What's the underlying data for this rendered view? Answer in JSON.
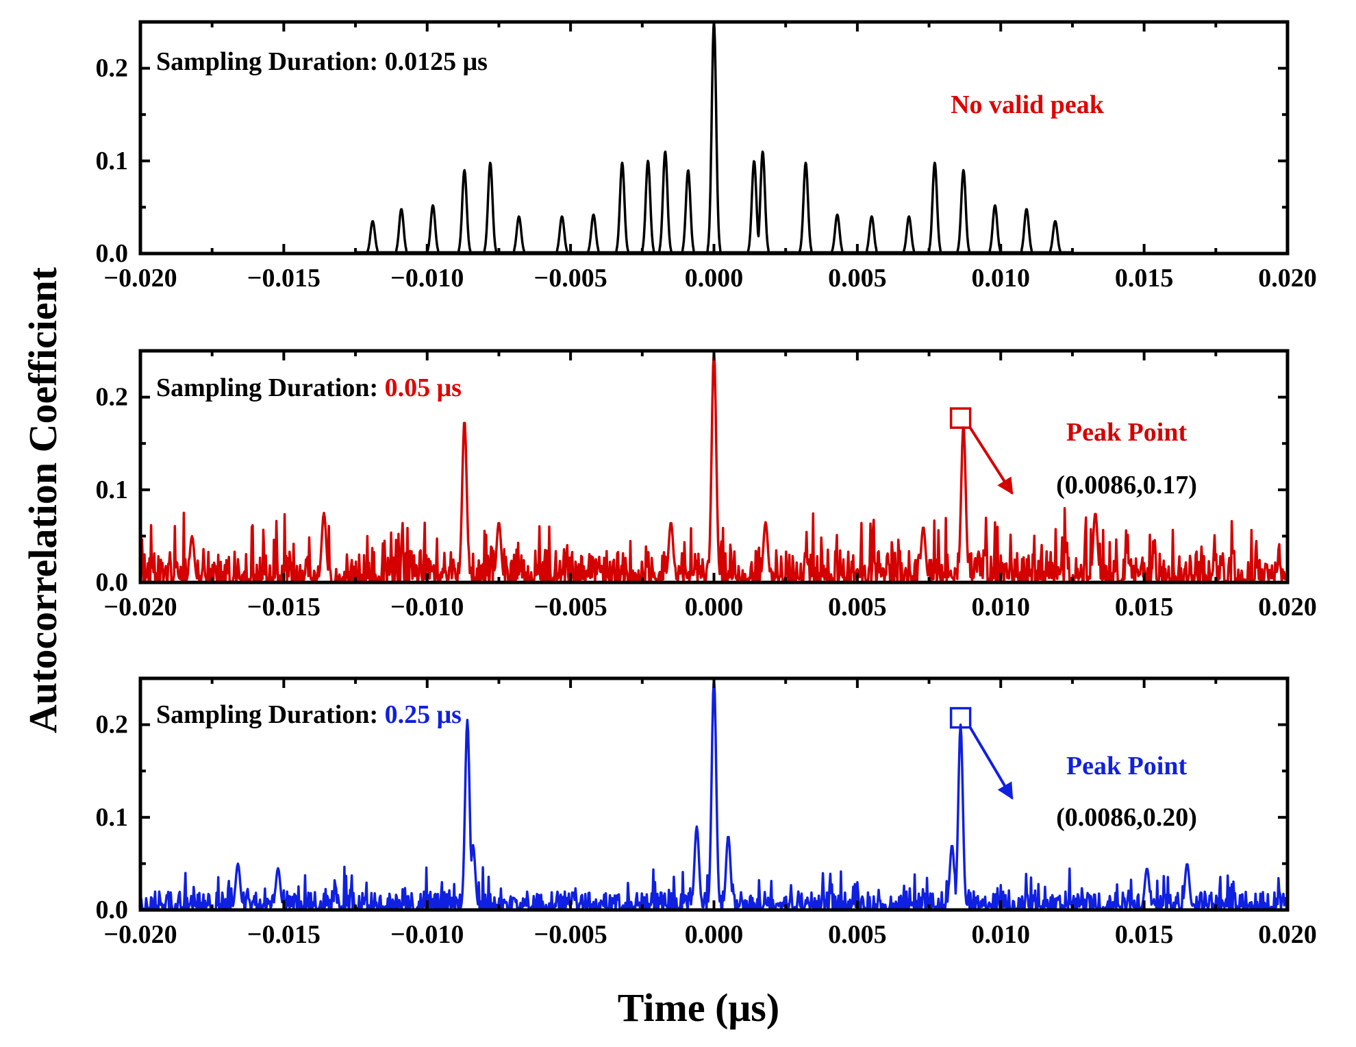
{
  "figure": {
    "ylabel": "Autocorrelation Coefficient",
    "xlabel": "Time (μs)"
  },
  "chart_data": [
    {
      "type": "line",
      "id": "panel1",
      "xlim": [
        -0.02,
        0.02
      ],
      "ylim": [
        0,
        0.25
      ],
      "x_ticks": [
        -0.02,
        -0.015,
        -0.01,
        -0.005,
        0.0,
        0.005,
        0.01,
        0.015,
        0.02
      ],
      "x_tick_labels": [
        "−0.020",
        "−0.015",
        "−0.010",
        "−0.005",
        "0.000",
        "0.005",
        "0.010",
        "0.015",
        "0.020"
      ],
      "y_ticks": [
        0.0,
        0.1,
        0.2
      ],
      "y_tick_labels": [
        "0.0",
        "0.1",
        "0.2"
      ],
      "grid": false,
      "sampling_label": "Sampling Duration: ",
      "sampling_value": "0.0125 μs",
      "sampling_value_color": "#000000",
      "note": "No valid peak",
      "note_color": "#e00000",
      "series": [
        {
          "color": "#000000",
          "x_range": [
            -0.0125,
            0.0125
          ],
          "noise_level": 0,
          "peaks": [
            [
              -0.0119,
              0.035
            ],
            [
              -0.0109,
              0.048
            ],
            [
              -0.0098,
              0.052
            ],
            [
              -0.0087,
              0.09
            ],
            [
              -0.0078,
              0.098
            ],
            [
              -0.0068,
              0.04
            ],
            [
              -0.0053,
              0.04
            ],
            [
              -0.0042,
              0.042
            ],
            [
              -0.0032,
              0.098
            ],
            [
              -0.0023,
              0.1
            ],
            [
              -0.0017,
              0.11
            ],
            [
              -0.0009,
              0.09
            ],
            [
              0.0,
              0.25
            ],
            [
              0.0014,
              0.1
            ],
            [
              0.0017,
              0.11
            ],
            [
              0.0032,
              0.098
            ],
            [
              0.0043,
              0.042
            ],
            [
              0.0055,
              0.04
            ],
            [
              0.0068,
              0.04
            ],
            [
              0.0077,
              0.098
            ],
            [
              0.0087,
              0.09
            ],
            [
              0.0098,
              0.052
            ],
            [
              0.0109,
              0.048
            ],
            [
              0.0119,
              0.035
            ]
          ]
        }
      ]
    },
    {
      "type": "line",
      "id": "panel2",
      "xlim": [
        -0.02,
        0.02
      ],
      "ylim": [
        0,
        0.25
      ],
      "x_ticks": [
        -0.02,
        -0.015,
        -0.01,
        -0.005,
        0.0,
        0.005,
        0.01,
        0.015,
        0.02
      ],
      "x_tick_labels": [
        "−0.020",
        "−0.015",
        "−0.010",
        "−0.005",
        "0.000",
        "0.005",
        "0.010",
        "0.015",
        "0.020"
      ],
      "y_ticks": [
        0.0,
        0.1,
        0.2
      ],
      "y_tick_labels": [
        "0.0",
        "0.1",
        "0.2"
      ],
      "grid": false,
      "sampling_label": "Sampling Duration: ",
      "sampling_value": "0.05 μs",
      "sampling_value_color": "#e00000",
      "peak_point": {
        "x": 0.0086,
        "y": 0.17,
        "label": "Peak Point",
        "coord_label": "(0.0086,0.17)",
        "color": "#d40000"
      },
      "series": [
        {
          "color": "#d40000",
          "x_range": [
            -0.02,
            0.02
          ],
          "noise_level": 0.035,
          "peaks": [
            [
              -0.0136,
              0.075
            ],
            [
              -0.0087,
              0.175
            ],
            [
              0.0,
              0.25
            ],
            [
              0.0087,
              0.17
            ],
            [
              0.0133,
              0.075
            ],
            [
              -0.0182,
              0.05
            ],
            [
              -0.0075,
              0.065
            ],
            [
              0.0018,
              0.065
            ],
            [
              0.0073,
              0.06
            ],
            [
              -0.0015,
              0.065
            ]
          ]
        }
      ]
    },
    {
      "type": "line",
      "id": "panel3",
      "xlim": [
        -0.02,
        0.02
      ],
      "ylim": [
        0,
        0.25
      ],
      "x_ticks": [
        -0.02,
        -0.015,
        -0.01,
        -0.005,
        0.0,
        0.005,
        0.01,
        0.015,
        0.02
      ],
      "x_tick_labels": [
        "−0.020",
        "−0.015",
        "−0.010",
        "−0.005",
        "0.000",
        "0.005",
        "0.010",
        "0.015",
        "0.020"
      ],
      "y_ticks": [
        0.0,
        0.1,
        0.2
      ],
      "y_tick_labels": [
        "0.0",
        "0.1",
        "0.2"
      ],
      "grid": false,
      "sampling_label": "Sampling Duration: ",
      "sampling_value": "0.25 μs",
      "sampling_value_color": "#1020e0",
      "peak_point": {
        "x": 0.0086,
        "y": 0.2,
        "label": "Peak Point",
        "coord_label": "(0.0086,0.20)",
        "color": "#1020e0"
      },
      "series": [
        {
          "color": "#1020e0",
          "x_range": [
            -0.02,
            0.02
          ],
          "noise_level": 0.02,
          "peaks": [
            [
              -0.0086,
              0.205
            ],
            [
              0.0,
              0.25
            ],
            [
              0.0086,
              0.2
            ],
            [
              -0.0166,
              0.05
            ],
            [
              -0.0152,
              0.045
            ],
            [
              0.0151,
              0.045
            ],
            [
              0.0165,
              0.05
            ],
            [
              -0.0084,
              0.07
            ],
            [
              0.0083,
              0.07
            ],
            [
              -0.0006,
              0.09
            ],
            [
              0.0005,
              0.08
            ]
          ]
        }
      ]
    }
  ]
}
